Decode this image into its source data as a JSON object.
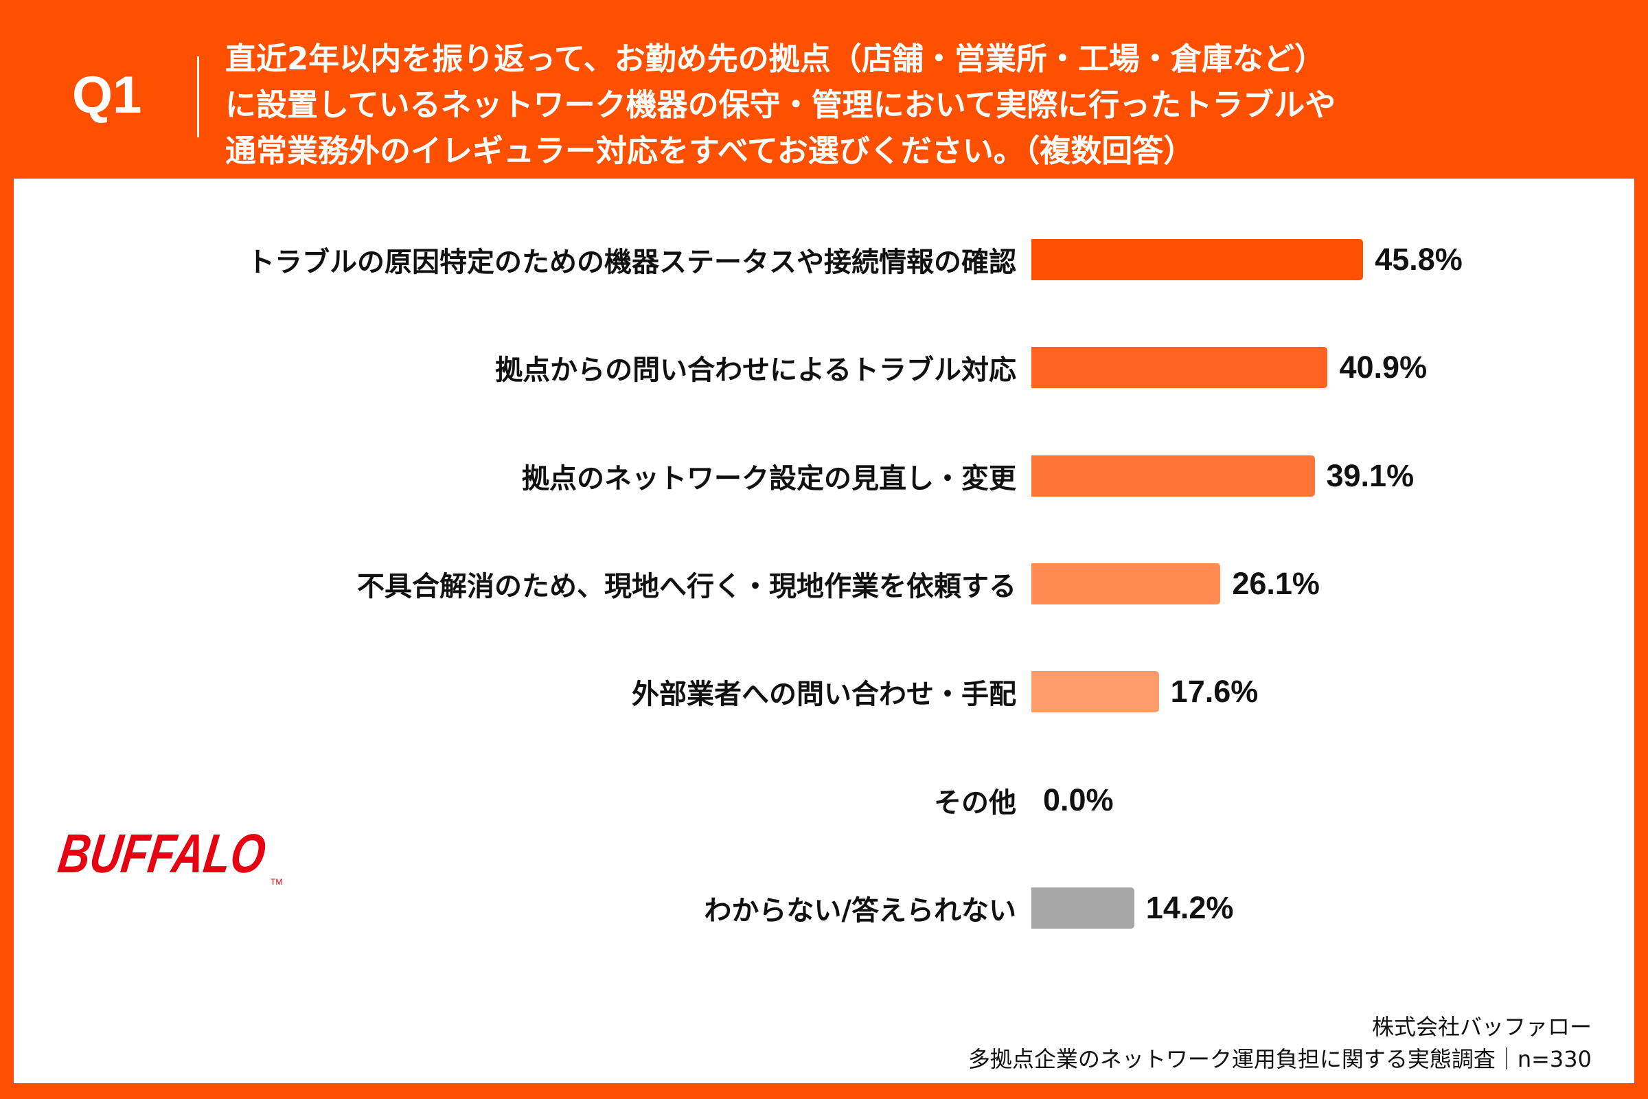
{
  "header": {
    "question_number": "Q1",
    "title_lines": [
      "直近2年以内を振り返って、お勤め先の拠点（店舗・営業所・工場・倉庫など）",
      "に設置しているネットワーク機器の保守・管理において実際に行ったトラブルや",
      "通常業務外のイレギュラー対応をすべてお選びください。（複数回答）"
    ]
  },
  "colors": {
    "background": "#FF5000",
    "panel": "#FFFFFF",
    "logo": "#E60012"
  },
  "chart_data": {
    "type": "bar",
    "orientation": "horizontal",
    "categories": [
      "トラブルの原因特定のための機器ステータスや接続情報の確認",
      "拠点からの問い合わせによるトラブル対応",
      "拠点のネットワーク設定の見直し・変更",
      "不具合解消のため、現地へ行く・現地作業を依頼する",
      "外部業者への問い合わせ・手配",
      "その他",
      "わからない/答えられない"
    ],
    "values": [
      45.8,
      40.9,
      39.1,
      26.1,
      17.6,
      0.0,
      14.2
    ],
    "value_labels": [
      "45.8%",
      "40.9%",
      "39.1%",
      "26.1%",
      "17.6%",
      "0.0%",
      "14.2%"
    ],
    "bar_colors": [
      "#FF5000",
      "#FF6322",
      "#FF7638",
      "#FF8A52",
      "#FF9C6C",
      "#FF9C6C",
      "#A6A6A6"
    ],
    "unit": "%",
    "grid": false,
    "legend": "none"
  },
  "logo": {
    "text": "BUFFALO"
  },
  "footer": {
    "company": "株式会社バッファロー",
    "survey": "多拠点企業のネットワーク運用負担に関する実態調査｜n=330"
  }
}
